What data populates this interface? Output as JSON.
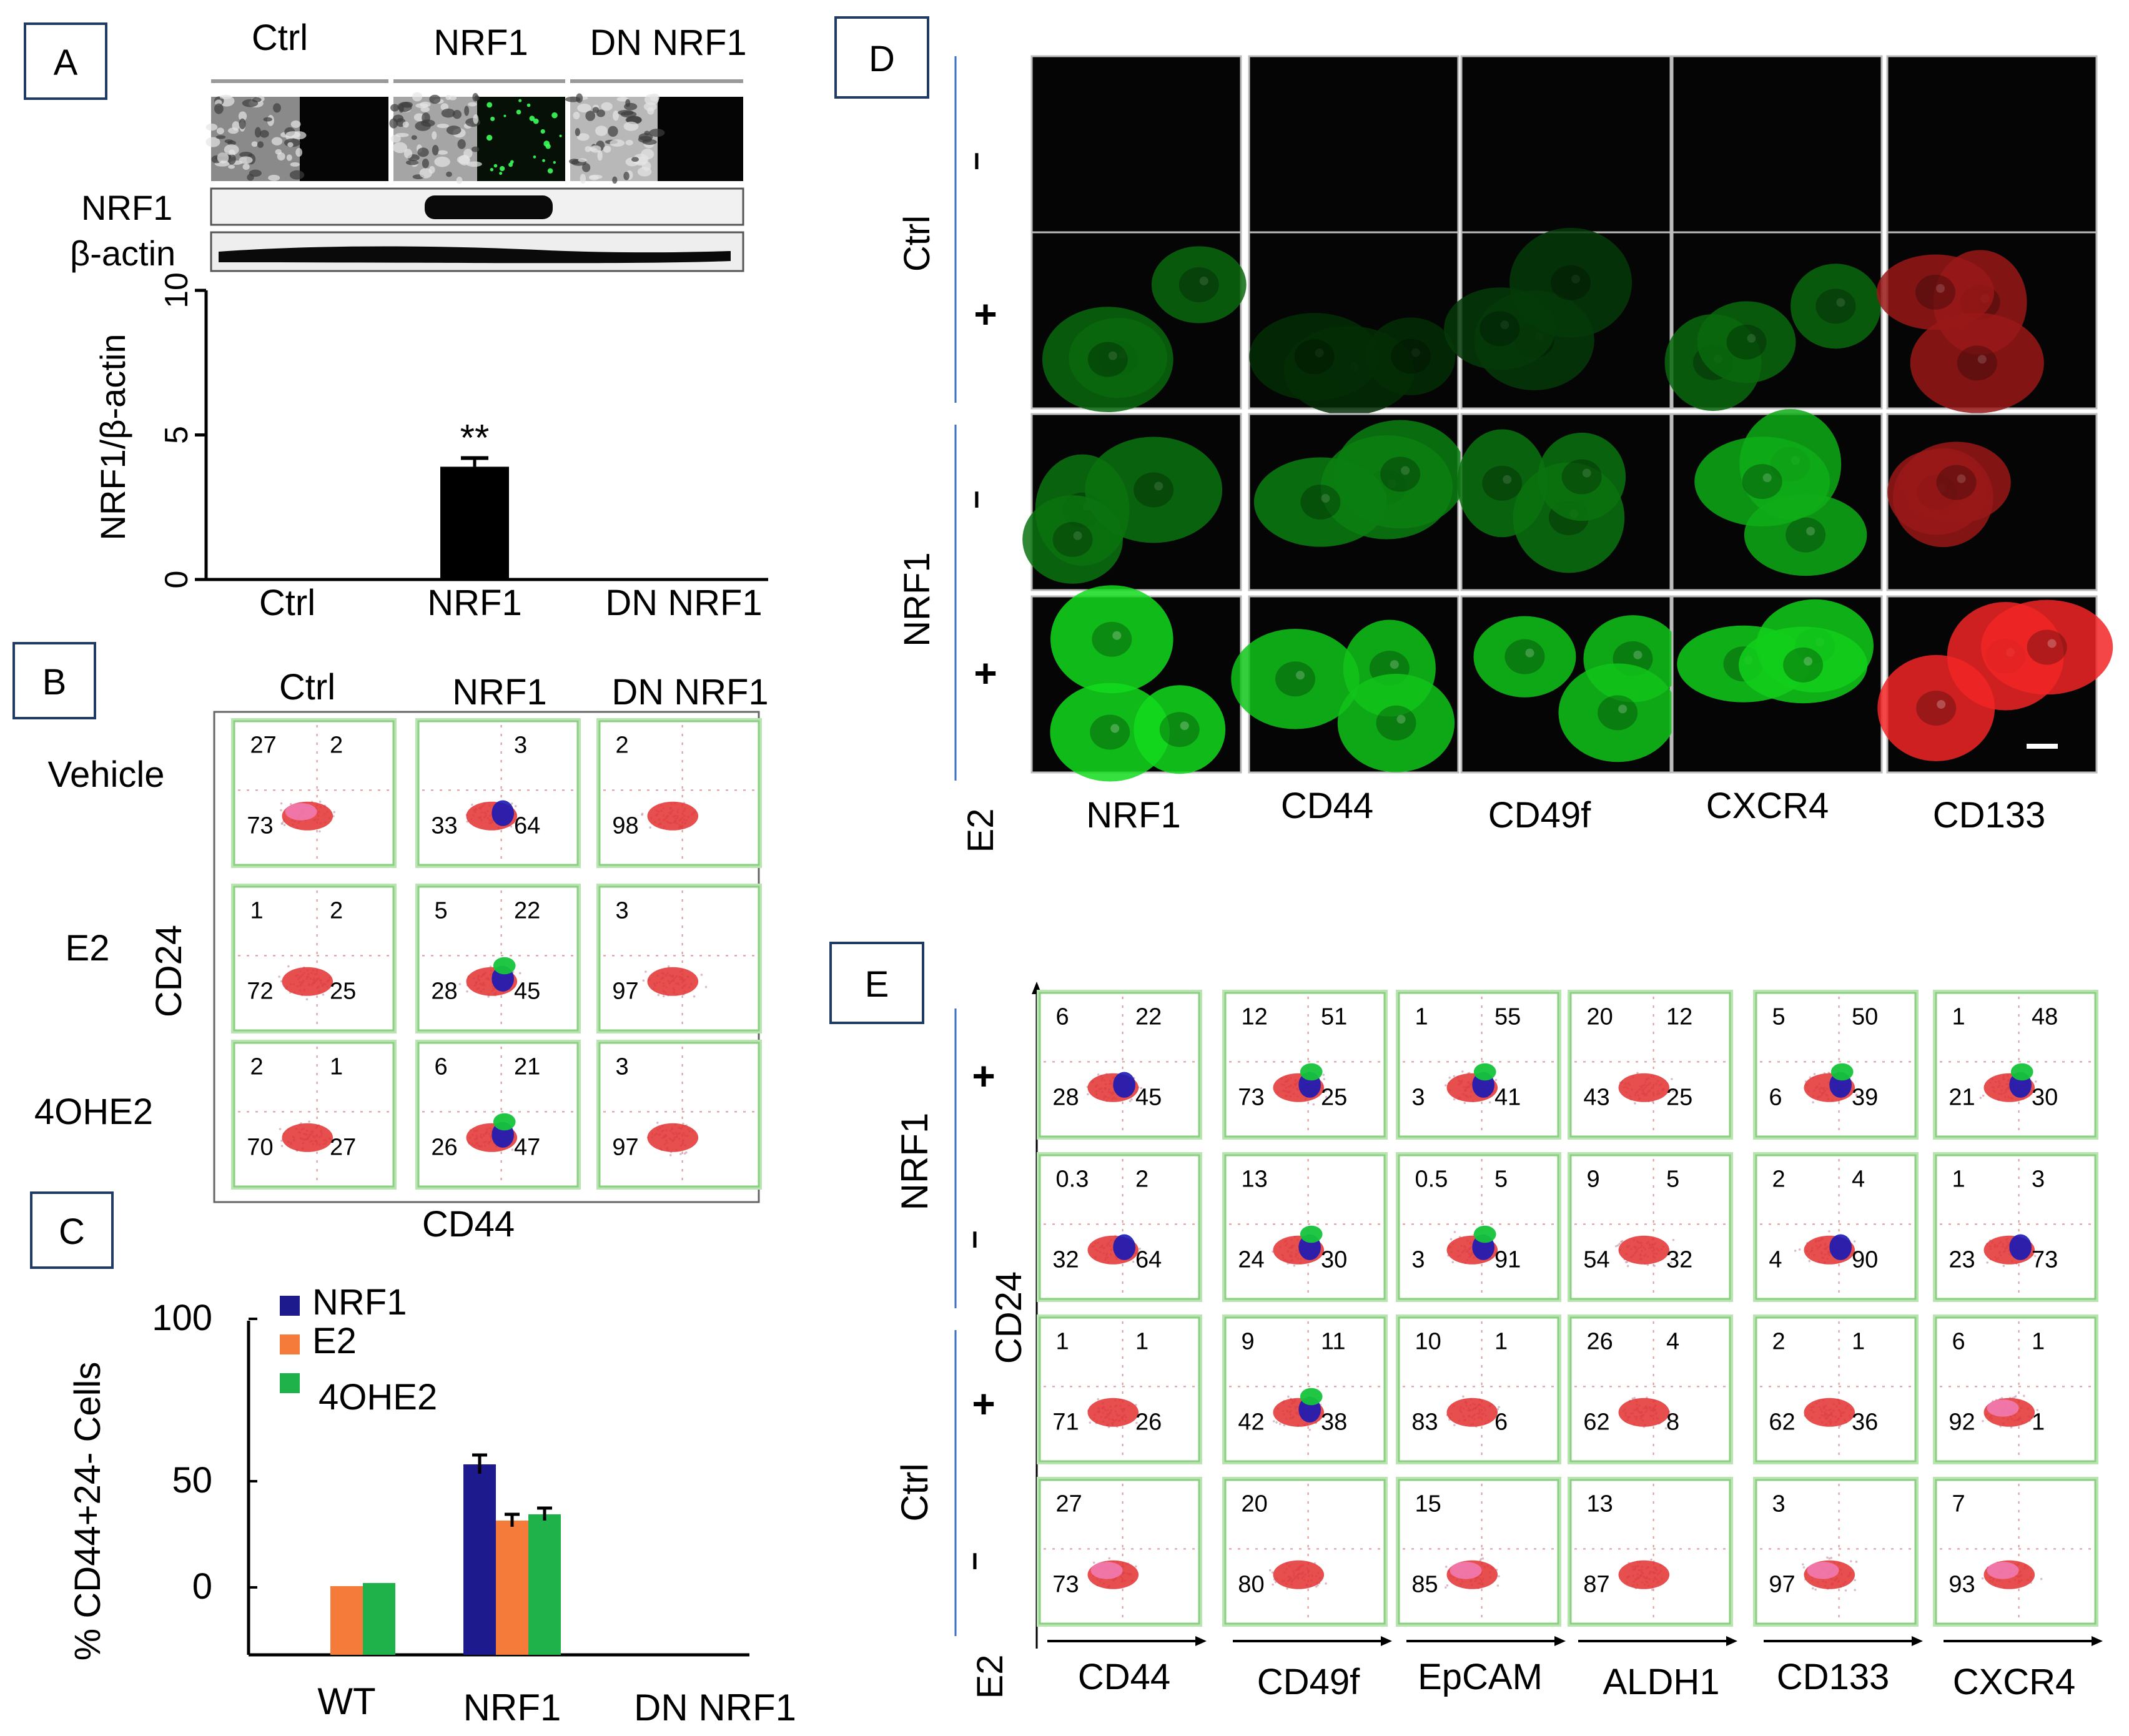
{
  "panel_letters": {
    "a": "A",
    "b": "B",
    "c": "C",
    "d": "D",
    "e": "E"
  },
  "panel_a": {
    "groups": [
      "Ctrl",
      "NRF1",
      "DN NRF1"
    ],
    "blot_labels": [
      "NRF1",
      "β-actin"
    ],
    "chart_data": {
      "type": "bar",
      "categories": [
        "Ctrl",
        "NRF1",
        "DN NRF1"
      ],
      "values": [
        0,
        3.9,
        0
      ],
      "errors": [
        0,
        0.3,
        0
      ],
      "ylabel": "NRF1/β-actin",
      "ylim": [
        0,
        10
      ],
      "yticks": [
        "0",
        "5",
        "10"
      ],
      "annotation": "**",
      "bar_color": "#000000"
    }
  },
  "panel_b": {
    "col_labels": [
      "Ctrl",
      "NRF1",
      "DN NRF1"
    ],
    "row_labels": [
      "Vehicle",
      "E2",
      "4OHE2"
    ],
    "ylabel": "CD24",
    "xlabel": "CD44",
    "plots": [
      [
        {
          "ul": "27",
          "ur": "2",
          "ll": "73",
          "lr": "",
          "pop": "pink"
        },
        {
          "ul": "",
          "ur": "3",
          "ll": "33",
          "lr": "64",
          "pop": "blue"
        },
        {
          "ul": "2",
          "ur": "",
          "ll": "98",
          "lr": "",
          "pop": "red"
        }
      ],
      [
        {
          "ul": "1",
          "ur": "2",
          "ll": "72",
          "lr": "25",
          "pop": "red"
        },
        {
          "ul": "5",
          "ur": "22",
          "ll": "28",
          "lr": "45",
          "pop": "green"
        },
        {
          "ul": "3",
          "ur": "",
          "ll": "97",
          "lr": "",
          "pop": "red"
        }
      ],
      [
        {
          "ul": "2",
          "ur": "1",
          "ll": "70",
          "lr": "27",
          "pop": "red"
        },
        {
          "ul": "6",
          "ur": "21",
          "ll": "26",
          "lr": "47",
          "pop": "green"
        },
        {
          "ul": "3",
          "ur": "",
          "ll": "97",
          "lr": "",
          "pop": "red"
        }
      ]
    ]
  },
  "panel_c": {
    "chart_data": {
      "type": "bar",
      "categories": [
        "WT",
        "NRF1",
        "DN NRF1"
      ],
      "series": [
        {
          "name": "NRF1",
          "color": "#1c1a8c",
          "values": [
            0,
            61,
            0
          ],
          "errors": [
            0,
            3,
            0
          ]
        },
        {
          "name": "E2",
          "color": "#f47b3a",
          "values": [
            22,
            43,
            0
          ],
          "errors": [
            0,
            2,
            0
          ]
        },
        {
          "name": "4OHE2",
          "color": "#1fb24a",
          "values": [
            23,
            45,
            0
          ],
          "errors": [
            0,
            2,
            0
          ]
        }
      ],
      "ylabel": "% CD44+24- Cells",
      "ylim": [
        0,
        100
      ],
      "yticks": [
        "0",
        "50",
        "100"
      ]
    }
  },
  "panel_d": {
    "side_groups": [
      "Ctrl",
      "NRF1"
    ],
    "treatment_signs": [
      "–",
      "+",
      "–",
      "+"
    ],
    "bottom_label": "E2",
    "col_labels": [
      "NRF1",
      "CD44",
      "CD49f",
      "CXCR4",
      "CD133"
    ],
    "intensity": [
      [
        0.0,
        0.0,
        0.0,
        0.02,
        0.0
      ],
      [
        0.45,
        0.2,
        0.25,
        0.45,
        0.6
      ],
      [
        0.5,
        0.55,
        0.5,
        0.75,
        0.6
      ],
      [
        0.95,
        0.85,
        0.85,
        0.9,
        0.95
      ]
    ]
  },
  "panel_e": {
    "side_groups": [
      "NRF1",
      "Ctrl"
    ],
    "treatment_signs": [
      "+",
      "–",
      "+",
      "–"
    ],
    "bottom_label": "E2",
    "ylabel": "CD24",
    "col_labels": [
      "CD44",
      "CD49f",
      "EpCAM",
      "ALDH1",
      "CD133",
      "CXCR4"
    ],
    "plots": [
      [
        {
          "ul": "6",
          "ur": "22",
          "ll": "28",
          "lr": "45",
          "pop": "blue"
        },
        {
          "ul": "12",
          "ur": "51",
          "ll": "73",
          "lr": "25",
          "pop": "green"
        },
        {
          "ul": "1",
          "ur": "55",
          "ll": "3",
          "lr": "41",
          "pop": "green"
        },
        {
          "ul": "20",
          "ur": "12",
          "ll": "43",
          "lr": "25",
          "pop": "red"
        },
        {
          "ul": "5",
          "ur": "50",
          "ll": "6",
          "lr": "39",
          "pop": "green"
        },
        {
          "ul": "1",
          "ur": "48",
          "ll": "21",
          "lr": "30",
          "pop": "green"
        }
      ],
      [
        {
          "ul": "0.3",
          "ur": "2",
          "ll": "32",
          "lr": "64",
          "pop": "blue"
        },
        {
          "ul": "13",
          "ur": "",
          "ll": "24",
          "lr": "30",
          "pop": "green"
        },
        {
          "ul": "0.5",
          "ur": "5",
          "ll": "3",
          "lr": "91",
          "pop": "green"
        },
        {
          "ul": "9",
          "ur": "5",
          "ll": "54",
          "lr": "32",
          "pop": "red"
        },
        {
          "ul": "2",
          "ur": "4",
          "ll": "4",
          "lr": "90",
          "pop": "blue"
        },
        {
          "ul": "1",
          "ur": "3",
          "ll": "23",
          "lr": "73",
          "pop": "blue"
        }
      ],
      [
        {
          "ul": "1",
          "ur": "1",
          "ll": "71",
          "lr": "26",
          "pop": "red"
        },
        {
          "ul": "9",
          "ur": "11",
          "ll": "42",
          "lr": "38",
          "pop": "green"
        },
        {
          "ul": "10",
          "ur": "1",
          "ll": "83",
          "lr": "6",
          "pop": "red"
        },
        {
          "ul": "26",
          "ur": "4",
          "ll": "62",
          "lr": "8",
          "pop": "red"
        },
        {
          "ul": "2",
          "ur": "1",
          "ll": "62",
          "lr": "36",
          "pop": "red"
        },
        {
          "ul": "6",
          "ur": "1",
          "ll": "92",
          "lr": "1",
          "pop": "pink"
        }
      ],
      [
        {
          "ul": "27",
          "ur": "",
          "ll": "73",
          "lr": "",
          "pop": "pink"
        },
        {
          "ul": "20",
          "ur": "",
          "ll": "80",
          "lr": "",
          "pop": "red"
        },
        {
          "ul": "15",
          "ur": "",
          "ll": "85",
          "lr": "",
          "pop": "pink"
        },
        {
          "ul": "13",
          "ur": "",
          "ll": "87",
          "lr": "",
          "pop": "red"
        },
        {
          "ul": "3",
          "ur": "",
          "ll": "97",
          "lr": "",
          "pop": "pink"
        },
        {
          "ul": "7",
          "ur": "",
          "ll": "93",
          "lr": "",
          "pop": "pink"
        }
      ]
    ]
  }
}
